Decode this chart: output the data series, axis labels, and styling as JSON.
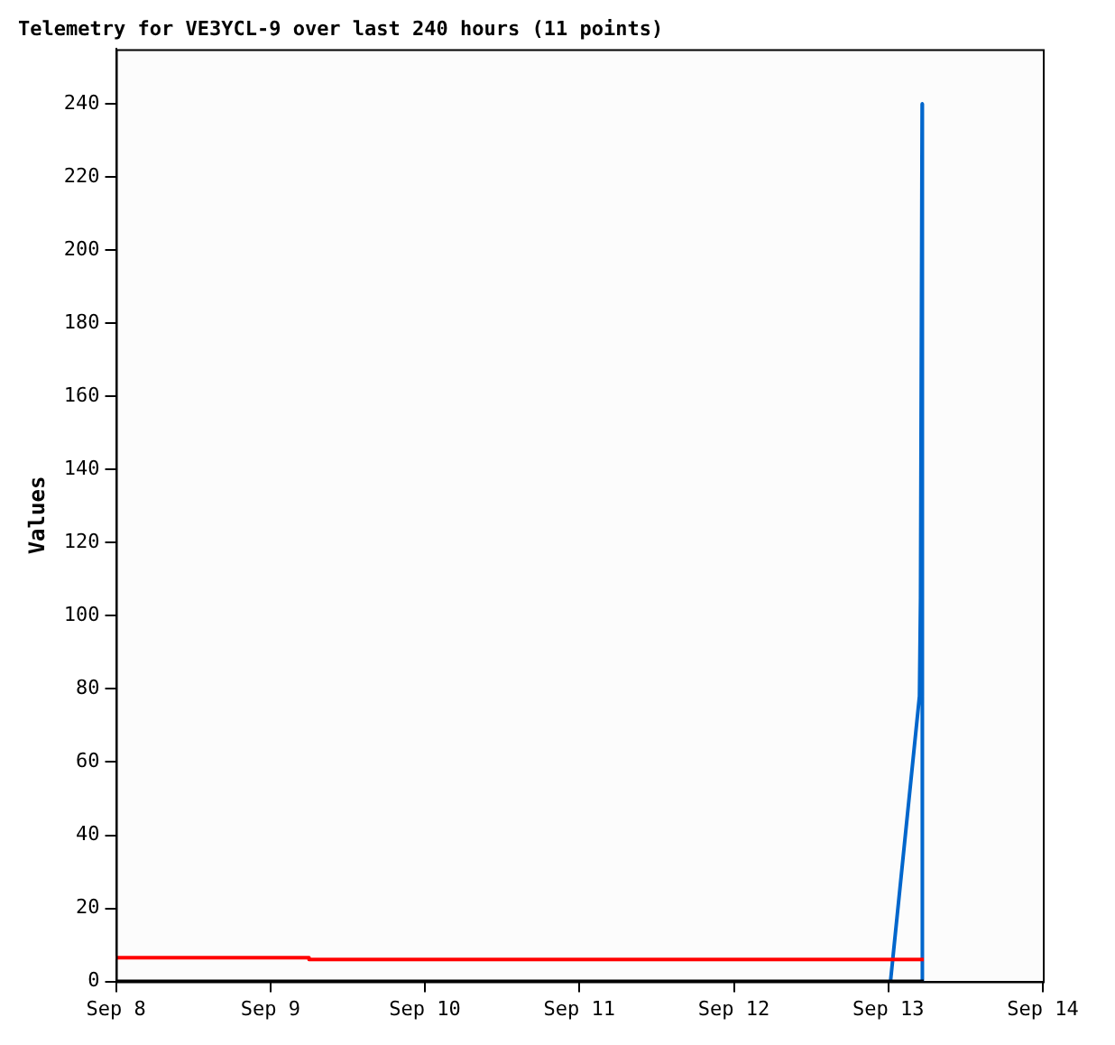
{
  "chart_data": {
    "type": "line",
    "title": "Telemetry for VE3YCL-9 over last 240 hours (11 points)",
    "ylabel": "Values",
    "xlim": [
      "--09-08",
      "--09-14"
    ],
    "xticks": [
      {
        "value": "--09-08",
        "label": "Sep 8"
      },
      {
        "value": "--09-09",
        "label": "Sep 9"
      },
      {
        "value": "--09-10",
        "label": "Sep 10"
      },
      {
        "value": "--09-11",
        "label": "Sep 11"
      },
      {
        "value": "--09-12",
        "label": "Sep 12"
      },
      {
        "value": "--09-13",
        "label": "Sep 13"
      },
      {
        "value": "--09-14",
        "label": "Sep 14"
      }
    ],
    "ylim": [
      0,
      255
    ],
    "yticks": [
      0,
      20,
      40,
      60,
      80,
      100,
      120,
      140,
      160,
      180,
      200,
      220,
      240
    ],
    "grid": false,
    "legend": false,
    "marker": "none",
    "line_style": "solid",
    "series": [
      {
        "type": "step",
        "color": "#ff0000",
        "x": [
          "--09-08T00:00",
          "--09-09T06:00",
          "--09-11T18:00",
          "--09-13T05:30"
        ],
        "values": [
          7,
          6.5,
          6,
          6
        ]
      },
      {
        "color": "#000000",
        "x": [
          "--09-08T00:00",
          "--09-13T05:30"
        ],
        "values": [
          0,
          0
        ]
      },
      {
        "color": "#0066cc",
        "x": [
          "--09-13T00:20",
          "--09-13T04:50",
          "--09-13T05:00",
          "--09-13T05:15",
          "--09-13T05:17"
        ],
        "values": [
          0,
          78,
          105,
          240,
          0
        ]
      }
    ]
  }
}
